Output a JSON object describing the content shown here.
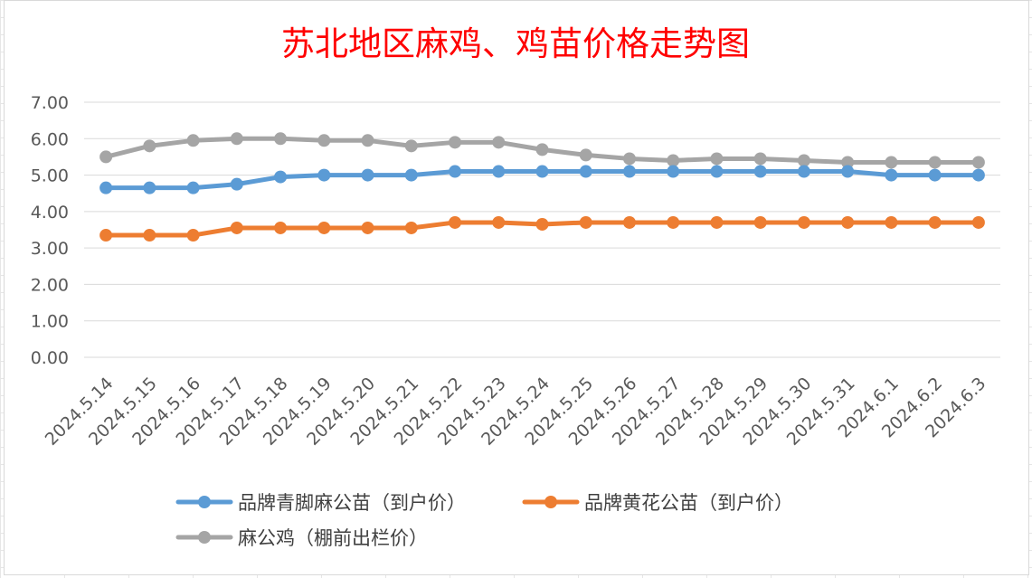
{
  "chart_data": {
    "type": "line",
    "title": "苏北地区麻鸡、鸡苗价格走势图",
    "xlabel": "",
    "ylabel": "",
    "ylim": [
      0,
      7
    ],
    "yticks": [
      "0.00",
      "1.00",
      "2.00",
      "3.00",
      "4.00",
      "5.00",
      "6.00",
      "7.00"
    ],
    "grid": true,
    "legend_position": "bottom",
    "categories": [
      "2024.5.14",
      "2024.5.15",
      "2024.5.16",
      "2024.5.17",
      "2024.5.18",
      "2024.5.19",
      "2024.5.20",
      "2024.5.21",
      "2024.5.22",
      "2024.5.23",
      "2024.5.24",
      "2024.5.25",
      "2024.5.26",
      "2024.5.27",
      "2024.5.28",
      "2024.5.29",
      "2024.5.30",
      "2024.5.31",
      "2024.6.1",
      "2024.6.2",
      "2024.6.3"
    ],
    "series": [
      {
        "name": "品牌青脚麻公苗（到户价）",
        "color": "#5b9bd5",
        "values": [
          4.65,
          4.65,
          4.65,
          4.75,
          4.95,
          5.0,
          5.0,
          5.0,
          5.1,
          5.1,
          5.1,
          5.1,
          5.1,
          5.1,
          5.1,
          5.1,
          5.1,
          5.1,
          5.0,
          5.0,
          5.0
        ]
      },
      {
        "name": "品牌黄花公苗（到户价）",
        "color": "#ed7d31",
        "values": [
          3.35,
          3.35,
          3.35,
          3.55,
          3.55,
          3.55,
          3.55,
          3.55,
          3.7,
          3.7,
          3.65,
          3.7,
          3.7,
          3.7,
          3.7,
          3.7,
          3.7,
          3.7,
          3.7,
          3.7,
          3.7
        ]
      },
      {
        "name": "麻公鸡（棚前出栏价）",
        "color": "#a5a5a5",
        "values": [
          5.5,
          5.8,
          5.95,
          6.0,
          6.0,
          5.95,
          5.95,
          5.8,
          5.9,
          5.9,
          5.7,
          5.55,
          5.45,
          5.4,
          5.45,
          5.45,
          5.4,
          5.35,
          5.35,
          5.35,
          5.35
        ]
      }
    ]
  }
}
